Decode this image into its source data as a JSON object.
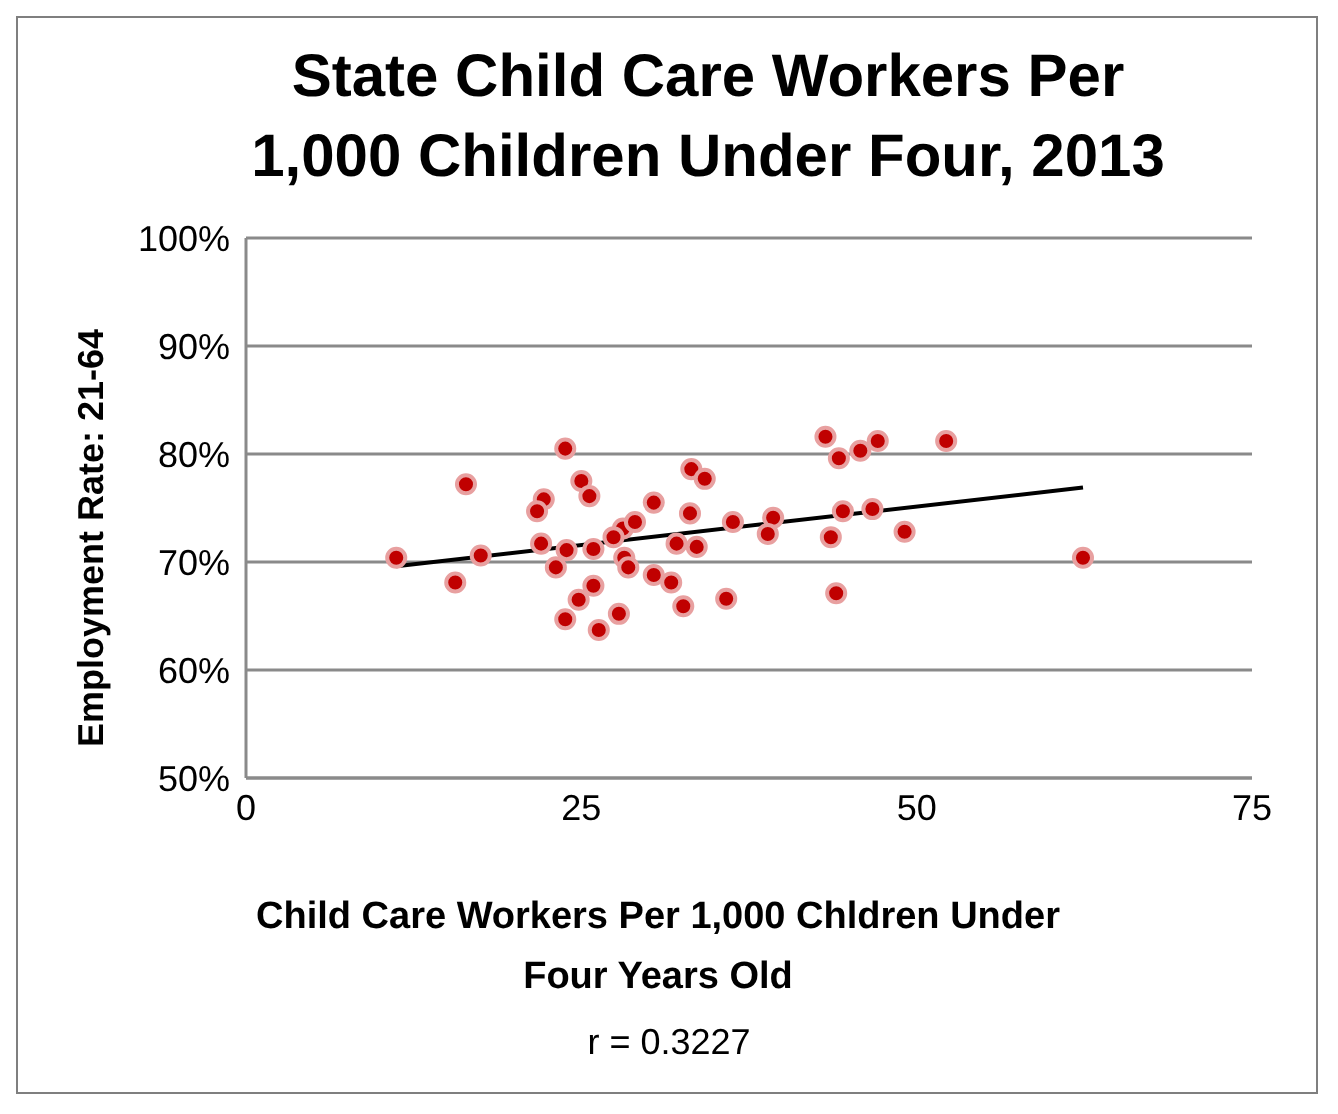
{
  "chart_data": {
    "type": "scatter",
    "title": "State Child Care Workers Per 1,000 Children Under Four, 2013",
    "xlabel": "Child Care Workers Per 1,000 Chldren Under Four Years Old",
    "ylabel": "Employment Rate: 21-64",
    "annotations": [
      "r = 0.3227"
    ],
    "series": [
      {
        "marker": "circle",
        "color": "#c00000",
        "x": [
          11.2,
          16.4,
          15.6,
          17.5,
          23.8,
          25.0,
          25.6,
          22.2,
          21.7,
          22.0,
          23.9,
          23.1,
          25.9,
          25.9,
          24.8,
          23.8,
          26.3,
          27.8,
          28.1,
          27.4,
          29.0,
          28.2,
          28.5,
          30.4,
          30.4,
          31.7,
          32.6,
          33.2,
          34.2,
          33.1,
          32.1,
          33.6,
          35.8,
          36.3,
          39.3,
          38.9,
          43.2,
          44.2,
          45.8,
          47.1,
          52.2,
          44.5,
          46.7,
          43.6,
          49.1,
          44.0,
          62.4
        ],
        "values": [
          70.4,
          77.2,
          68.1,
          70.6,
          80.5,
          77.5,
          76.1,
          75.8,
          74.7,
          71.7,
          71.1,
          69.5,
          71.2,
          67.8,
          66.5,
          64.7,
          63.7,
          65.2,
          73.1,
          72.3,
          73.7,
          70.4,
          69.5,
          75.5,
          68.8,
          68.1,
          65.9,
          78.6,
          77.7,
          74.5,
          71.7,
          71.4,
          66.6,
          73.7,
          74.1,
          72.6,
          81.6,
          79.6,
          80.3,
          81.2,
          81.2,
          74.7,
          74.9,
          72.3,
          72.8,
          67.1,
          70.4
        ]
      },
      {
        "type": "line",
        "color": "#000000",
        "x": [
          11.2,
          62.4
        ],
        "values": [
          69.6,
          76.9
        ]
      }
    ],
    "xlim": [
      0,
      75
    ],
    "xticks": [
      0,
      25,
      50,
      75
    ],
    "ylim": [
      50,
      100
    ],
    "yticks": [
      {
        "value": 50,
        "label": "50%"
      },
      {
        "value": 60,
        "label": "60%"
      },
      {
        "value": 70,
        "label": "70%"
      },
      {
        "value": 80,
        "label": "80%"
      },
      {
        "value": 90,
        "label": "90%"
      },
      {
        "value": 100,
        "label": "100%"
      }
    ],
    "grid": "y"
  }
}
